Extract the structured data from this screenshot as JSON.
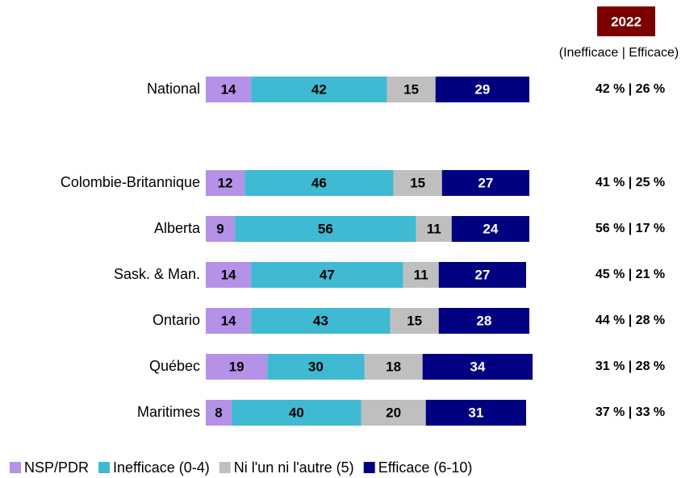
{
  "chart_data": {
    "type": "stacked_bar_horizontal",
    "header": "2022",
    "subtitle": "(Inefficace | Efficace)",
    "categories": [
      "National",
      "Colombie-Britannique",
      "Alberta",
      "Sask. & Man.",
      "Ontario",
      "Québec",
      "Maritimes"
    ],
    "series": [
      {
        "name": "NSP/PDR",
        "color": "#b592e8",
        "values": [
          14,
          12,
          9,
          14,
          14,
          19,
          8
        ]
      },
      {
        "name": "Inefficace (0-4)",
        "color": "#40b9d2",
        "values": [
          42,
          46,
          56,
          47,
          43,
          30,
          40
        ]
      },
      {
        "name": "Ni l'un ni l'autre (5)",
        "color": "#bfbfbf",
        "values": [
          15,
          15,
          11,
          11,
          15,
          18,
          20
        ]
      },
      {
        "name": "Efficace (6-10)",
        "color": "#000080",
        "values": [
          29,
          27,
          24,
          27,
          28,
          34,
          31
        ]
      }
    ],
    "annotations": [
      "42 % | 26 %",
      "41 % | 25 %",
      "56 % | 17 %",
      "45 % | 21 %",
      "44 % | 28 %",
      "31 % | 28 %",
      "37 % | 33 %"
    ],
    "legend": "bottom"
  }
}
